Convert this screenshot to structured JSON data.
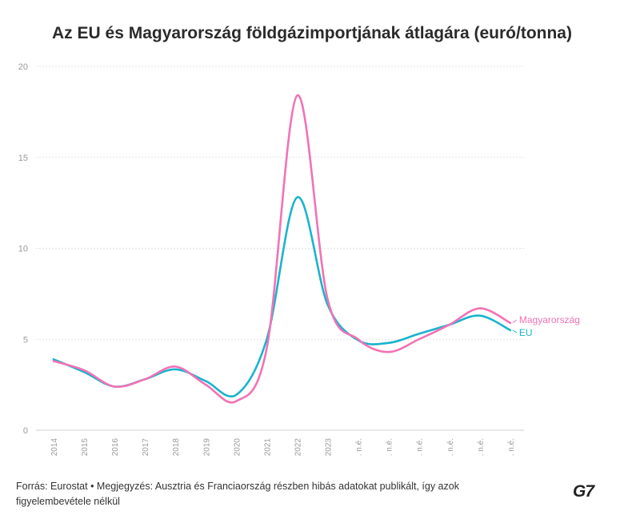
{
  "chart_data": {
    "type": "line",
    "title": "Az EU és Magyarország földgázimportjának átlagára (euró/tonna)",
    "xlabel": "",
    "ylabel": "",
    "categories": [
      "2014",
      "2015",
      "2016",
      "2017",
      "2018",
      "2019",
      "2020",
      "2021",
      "2022",
      "2023",
      ". n.é.",
      ". n.é.",
      ". n.é.",
      ". n.é.",
      ". n.é.",
      ". n.é."
    ],
    "ylim": [
      0,
      20
    ],
    "yticks": [
      0,
      5,
      10,
      15,
      20
    ],
    "grid": true,
    "legend": "end-of-line labels",
    "series": [
      {
        "name": "Magyarország",
        "color": "#f272b5",
        "values": [
          3.8,
          3.3,
          2.4,
          2.8,
          3.5,
          2.5,
          1.6,
          4.5,
          18.4,
          7.2,
          5.0,
          4.3,
          5.0,
          5.8,
          6.7,
          5.9
        ]
      },
      {
        "name": "EU",
        "color": "#1ab3cc",
        "values": [
          3.9,
          3.2,
          2.4,
          2.8,
          3.35,
          2.7,
          1.95,
          5.0,
          12.8,
          6.9,
          4.95,
          4.8,
          5.3,
          5.8,
          6.3,
          5.5
        ]
      }
    ]
  },
  "footer": {
    "source": "Forrás: Eurostat • Megjegyzés: Ausztria és Franciaország részben hibás adatokat publikált, így azok figyelembevétele nélkül"
  },
  "logo": {
    "text": "G7"
  }
}
